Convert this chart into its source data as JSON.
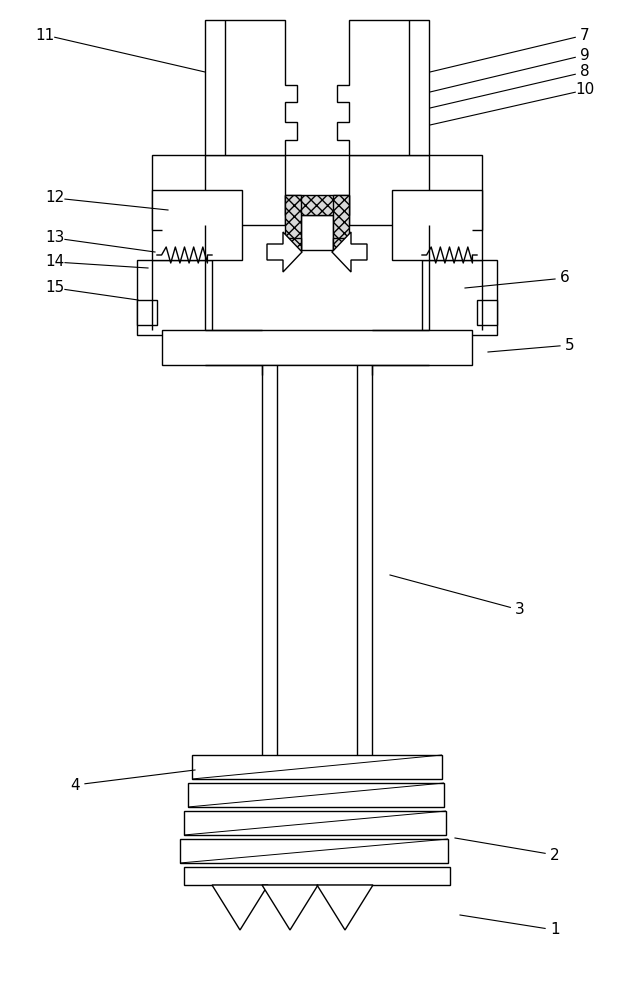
{
  "bg_color": "#ffffff",
  "line_color": "#000000",
  "lw": 1.0,
  "annotations": [
    [
      "1",
      [
        555,
        930
      ],
      [
        460,
        915
      ]
    ],
    [
      "2",
      [
        555,
        855
      ],
      [
        455,
        838
      ]
    ],
    [
      "3",
      [
        520,
        610
      ],
      [
        390,
        575
      ]
    ],
    [
      "4",
      [
        75,
        785
      ],
      [
        195,
        770
      ]
    ],
    [
      "5",
      [
        570,
        345
      ],
      [
        488,
        352
      ]
    ],
    [
      "6",
      [
        565,
        278
      ],
      [
        465,
        288
      ]
    ],
    [
      "7",
      [
        585,
        35
      ],
      [
        430,
        72
      ]
    ],
    [
      "9",
      [
        585,
        55
      ],
      [
        430,
        92
      ]
    ],
    [
      "8",
      [
        585,
        72
      ],
      [
        430,
        108
      ]
    ],
    [
      "10",
      [
        585,
        90
      ],
      [
        430,
        125
      ]
    ],
    [
      "11",
      [
        45,
        35
      ],
      [
        205,
        72
      ]
    ],
    [
      "12",
      [
        55,
        198
      ],
      [
        168,
        210
      ]
    ],
    [
      "13",
      [
        55,
        238
      ],
      [
        155,
        252
      ]
    ],
    [
      "14",
      [
        55,
        262
      ],
      [
        148,
        268
      ]
    ],
    [
      "15",
      [
        55,
        288
      ],
      [
        138,
        300
      ]
    ]
  ]
}
